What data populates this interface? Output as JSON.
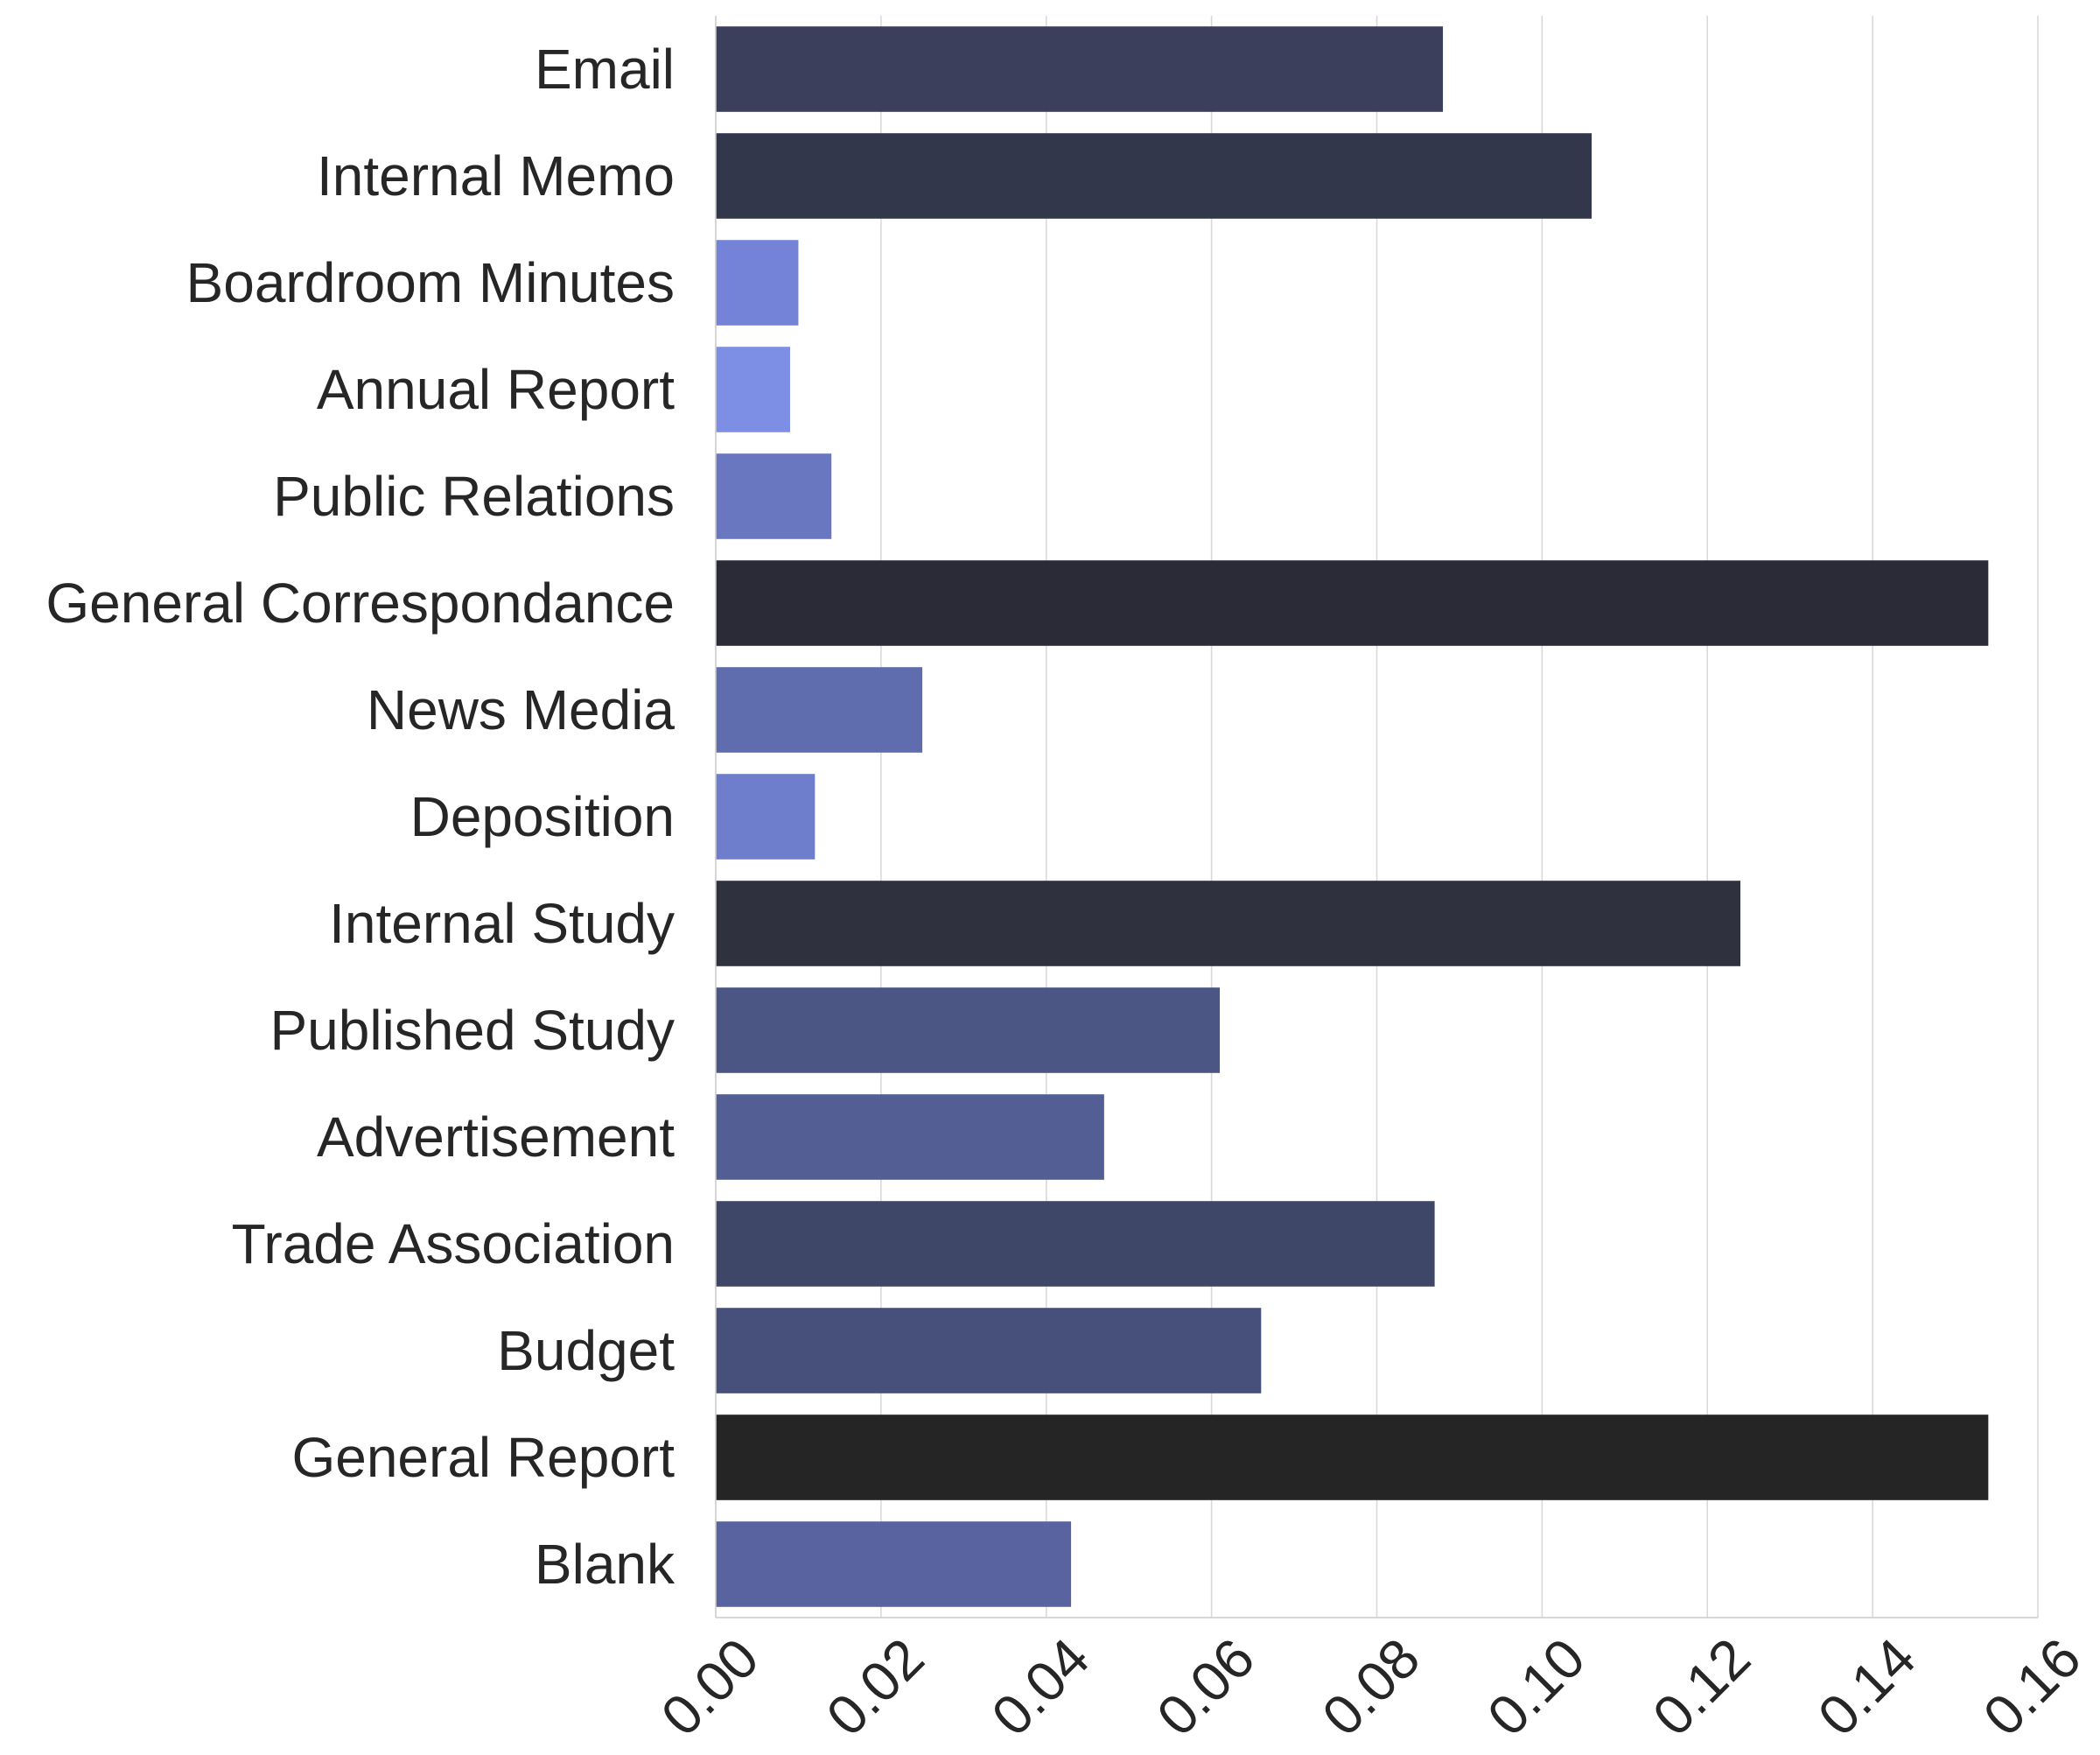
{
  "chart_data": {
    "type": "bar",
    "orientation": "horizontal",
    "title": "",
    "xlabel": "",
    "ylabel": "",
    "xlim": [
      0,
      0.16
    ],
    "grid": "vertical",
    "legend": "none",
    "x_ticks": [
      0.0,
      0.02,
      0.04,
      0.06,
      0.08,
      0.1,
      0.12,
      0.14,
      0.16
    ],
    "x_tick_labels": [
      "0.00",
      "0.02",
      "0.04",
      "0.06",
      "0.08",
      "0.10",
      "0.12",
      "0.14",
      "0.16"
    ],
    "categories": [
      "Email",
      "Internal Memo",
      "Boardroom Minutes",
      "Annual Report",
      "Public Relations",
      "General Correspondance",
      "News Media",
      "Deposition",
      "Internal Study",
      "Published Study",
      "Advertisement",
      "Trade Association",
      "Budget",
      "General Report",
      "Blank"
    ],
    "values": [
      0.088,
      0.106,
      0.01,
      0.009,
      0.014,
      0.154,
      0.025,
      0.012,
      0.124,
      0.061,
      0.047,
      0.087,
      0.066,
      0.154,
      0.043
    ],
    "colors": [
      "#3b3f5c",
      "#33374b",
      "#7483d7",
      "#7d8fe5",
      "#6977c1",
      "#2a2b36",
      "#5f6cae",
      "#6e7ecd",
      "#30313f",
      "#4c5685",
      "#535e94",
      "#3e4768",
      "#474f7b",
      "#252525",
      "#5963a0"
    ]
  }
}
